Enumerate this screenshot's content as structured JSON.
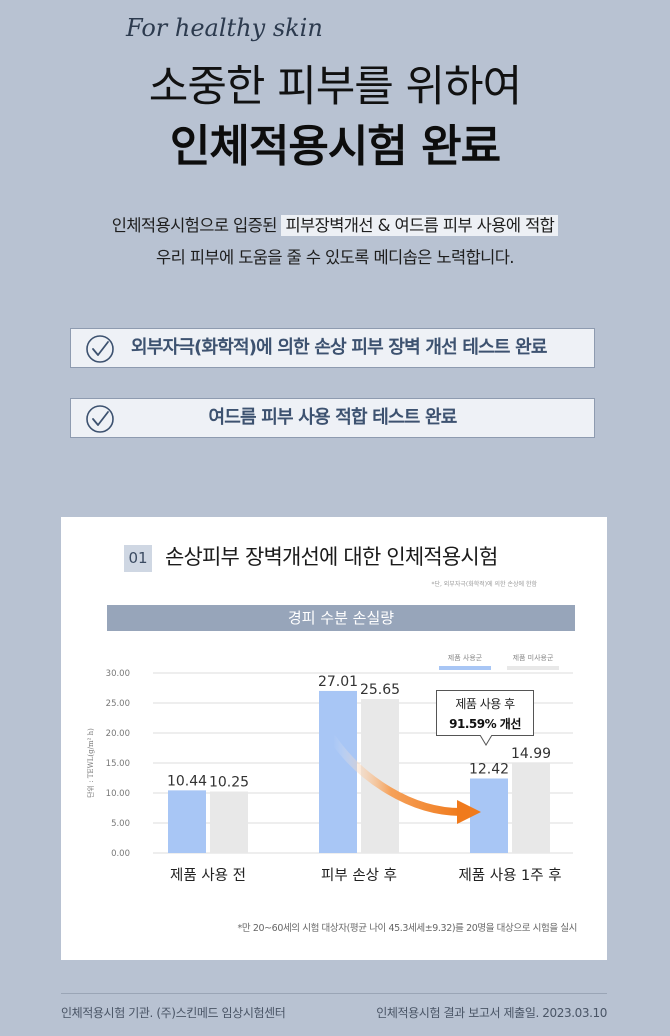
{
  "header": {
    "tagline": "For healthy skin",
    "headline_line1": "소중한 피부를 위하여",
    "headline_line2": "인체적용시험 완료"
  },
  "intro": {
    "line1_prefix": "인체적용시험으로 입증된",
    "line1_highlight": "피부장벽개선 & 여드름 피부 사용에 적합",
    "line2": "우리 피부에 도움을 줄 수 있도록 메디솝은 노력합니다."
  },
  "badges": [
    {
      "label": "외부자극(화학적)에 의한 손상 피부 장벽 개선 테스트 완료",
      "icon": "check-circle-icon"
    },
    {
      "label": "여드름 피부 사용 적합 테스트 완료",
      "icon": "check-circle-icon"
    }
  ],
  "card": {
    "number": "01",
    "title": "손상피부 장벽개선에 대한 인체적용시험",
    "note": "*단, 외부자극(화학적)에 의한 손상에 한함",
    "footnote": "*만 20~60세의 시험 대상자(평균 나이 45.3세세±9.32)를 20명을 대상으로 시험을 실시"
  },
  "chart_data": {
    "type": "bar",
    "title": "경피 수분 손실량",
    "ylabel": "단위 : TEWL(g/m² h)",
    "ylim": [
      0,
      30
    ],
    "yticks": [
      "0.00",
      "5.00",
      "10.00",
      "15.00",
      "20.00",
      "25.00",
      "30.00"
    ],
    "grid": true,
    "legend_position": "top-right",
    "categories": [
      "제품 사용 전",
      "피부 손상 후",
      "제품 사용 1주 후"
    ],
    "series": [
      {
        "name": "제품 사용군",
        "values": [
          10.44,
          27.01,
          12.42
        ],
        "labels": [
          "10.44",
          "27.01",
          "12.42"
        ],
        "color": "#a8c6f5"
      },
      {
        "name": "제품 미사용군",
        "values": [
          10.25,
          25.65,
          14.99
        ],
        "labels": [
          "10.25",
          "25.65",
          "14.99"
        ],
        "color": "#e8e8e8"
      }
    ],
    "annotation": {
      "line1": "제품 사용 후",
      "line2": "91.59% 개선"
    }
  },
  "colors": {
    "background": "#b8c2d2",
    "accent_text": "#3d5270",
    "banner": "#97a5ba",
    "arrow": "#f07a1c"
  },
  "footer": {
    "left": "인체적용시험 기관. (주)스킨메드 임상시험센터",
    "right": "인체적용시험 결과 보고서 제출일. 2023.03.10"
  }
}
